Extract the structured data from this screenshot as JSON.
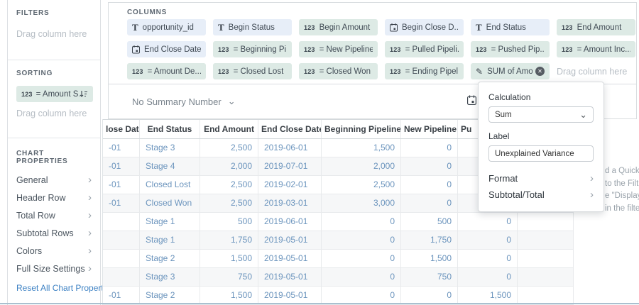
{
  "sidebar": {
    "filters": {
      "title": "FILTERS",
      "placeholder": "Drag column here"
    },
    "sorting": {
      "title": "SORTING",
      "pill": {
        "type_icon": "123",
        "label": "= Amount S...",
        "sort_icon": "sort-descending-icon"
      },
      "placeholder": "Drag column here"
    },
    "chart_properties": {
      "title": "CHART PROPERTIES",
      "items": [
        "General",
        "Header Row",
        "Total Row",
        "Subtotal Rows",
        "Colors",
        "Full Size Settings"
      ],
      "reset_label": "Reset All Chart Properties"
    }
  },
  "columns_panel": {
    "title": "COLUMNS",
    "rows": [
      [
        {
          "icon": "text",
          "label": "opportunity_id"
        },
        {
          "icon": "text",
          "label": "Begin Status"
        },
        {
          "icon": "number",
          "label": "Begin Amount"
        },
        {
          "icon": "date",
          "label": "Begin Close D..."
        },
        {
          "icon": "text",
          "label": "End Status"
        },
        {
          "icon": "number",
          "label": "End Amount"
        }
      ],
      [
        {
          "icon": "date",
          "label": "End Close Date"
        },
        {
          "icon": "number",
          "label": "= Beginning Pi..."
        },
        {
          "icon": "number",
          "label": "= New Pipeline"
        },
        {
          "icon": "number",
          "label": "= Pulled Pipeli..."
        },
        {
          "icon": "number",
          "label": "= Pushed Pip..."
        },
        {
          "icon": "number",
          "label": "= Amount Inc..."
        }
      ],
      [
        {
          "icon": "number",
          "label": "= Amount De..."
        },
        {
          "icon": "number",
          "label": "= Closed Lost"
        },
        {
          "icon": "number",
          "label": "= Closed Won"
        },
        {
          "icon": "number",
          "label": "= Ending Pipel..."
        },
        {
          "icon": "pencil",
          "label": "SUM of Amou...",
          "close": true
        },
        {
          "drag": true,
          "label": "Drag column here"
        }
      ]
    ]
  },
  "summary_bar": {
    "label": "No Summary Number"
  },
  "table": {
    "headers": [
      "lose Date",
      "End Status",
      "End Amount",
      "End Close Date",
      "Beginning Pipeline",
      "New Pipeline",
      "Pu",
      ""
    ],
    "rows": [
      [
        "-01",
        "Stage 3",
        "2,500",
        "2019-06-01",
        "1,500",
        "0",
        "",
        ""
      ],
      [
        "-01",
        "Stage 4",
        "2,000",
        "2019-07-01",
        "2,000",
        "0",
        "",
        ""
      ],
      [
        "-01",
        "Closed Lost",
        "2,500",
        "2019-02-01",
        "2,500",
        "0",
        "",
        ""
      ],
      [
        "-01",
        "Closed Won",
        "2,500",
        "2019-03-01",
        "3,000",
        "0",
        "",
        ""
      ],
      [
        "",
        "Stage 1",
        "500",
        "2019-06-01",
        "0",
        "500",
        "0",
        ""
      ],
      [
        "",
        "Stage 1",
        "1,750",
        "2019-05-01",
        "0",
        "1,750",
        "0",
        ""
      ],
      [
        "",
        "Stage 2",
        "1,500",
        "2019-05-01",
        "0",
        "1,500",
        "0",
        ""
      ],
      [
        "",
        "Stage 3",
        "750",
        "2019-05-01",
        "0",
        "750",
        "0",
        ""
      ],
      [
        "-01",
        "Stage 2",
        "1,500",
        "2019-05-01",
        "0",
        "0",
        "1,500",
        ""
      ]
    ]
  },
  "popup": {
    "calculation_label": "Calculation",
    "calculation_value": "Sum",
    "label_label": "Label",
    "label_value": "Unexplained Variance",
    "format_label": "Format",
    "subtotal_label": "Subtotal/Total"
  },
  "background_text": {
    "lines": [
      "d a Quick",
      "to the Filt",
      "e \"Display",
      "in the filter"
    ]
  },
  "icons": {
    "text_type": "T",
    "number_type": "123",
    "pencil": "✎",
    "close": "✕",
    "chevron_right": "›",
    "chevron_down": "⌄"
  },
  "colors": {
    "pill_text_bg": "#e7eef8",
    "pill_number_bg": "#ddeae5",
    "link_blue": "#3e82c4",
    "cell_text_blue": "#6b94bd",
    "header_text": "#3a4046",
    "selection_border": "#a9c0cf"
  }
}
